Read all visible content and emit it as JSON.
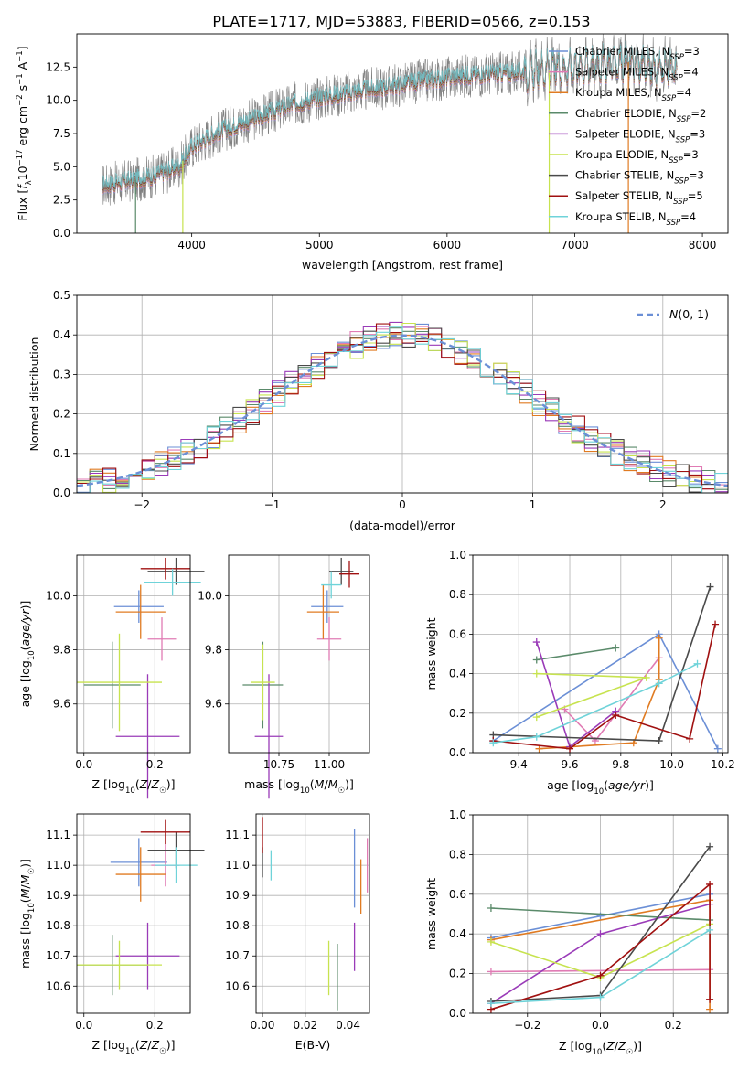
{
  "title": "PLATE=1717, MJD=53883, FIBERID=0566, z=0.153",
  "colors": {
    "Chabrier MILES": "#6b8fd6",
    "Salpeter MILES": "#e07bb4",
    "Kroupa MILES": "#e07b22",
    "Chabrier ELODIE": "#5a8a6a",
    "Salpeter ELODIE": "#9a3bb8",
    "Kroupa ELODIE": "#c7e34f",
    "Chabrier STELIB": "#4a4a4a",
    "Salpeter STELIB": "#a01010",
    "Kroupa STELIB": "#6fd3d9",
    "spectrum": "#808080",
    "normal": "#6b8fd6"
  },
  "chart_data": [
    {
      "type": "line",
      "panel": "spectrum",
      "xlabel": "wavelength [Angstrom, rest frame]",
      "ylabel": "Flux [f_λ 10^-17 erg cm^-2 s^-1 A^-1]",
      "xlim": [
        3100,
        8200
      ],
      "ylim": [
        0,
        15
      ],
      "xticks": [
        "4000",
        "5000",
        "6000",
        "7000",
        "8000"
      ],
      "yticks": [
        "0.0",
        "2.5",
        "5.0",
        "7.5",
        "10.0",
        "12.5"
      ],
      "data_range": [
        3300,
        7800
      ],
      "continuum": [
        [
          3300,
          3.6
        ],
        [
          3500,
          3.9
        ],
        [
          3700,
          4.3
        ],
        [
          3900,
          5.0
        ],
        [
          4000,
          6.5
        ],
        [
          4200,
          7.6
        ],
        [
          4400,
          8.3
        ],
        [
          4600,
          9.0
        ],
        [
          4800,
          9.7
        ],
        [
          5000,
          10.2
        ],
        [
          5200,
          10.5
        ],
        [
          5400,
          10.8
        ],
        [
          5600,
          11.1
        ],
        [
          5800,
          11.4
        ],
        [
          6000,
          11.7
        ],
        [
          6200,
          11.9
        ],
        [
          6400,
          12.0
        ],
        [
          6600,
          12.1
        ],
        [
          6800,
          12.3
        ],
        [
          7000,
          12.5
        ],
        [
          7200,
          12.7
        ],
        [
          7400,
          12.9
        ],
        [
          7600,
          12.5
        ],
        [
          7800,
          12.2
        ]
      ],
      "legend": [
        {
          "label": "Chabrier MILES, N_SSP=3",
          "base": "Chabrier MILES, N",
          "sub": "SSP",
          "tail": "=3"
        },
        {
          "label": "Salpeter MILES, N_SSP=4",
          "base": "Salpeter MILES, N",
          "sub": "SSP",
          "tail": "=4"
        },
        {
          "label": "Kroupa MILES, N_SSP=4",
          "base": "Kroupa MILES, N",
          "sub": "SSP",
          "tail": "=4"
        },
        {
          "label": "Chabrier ELODIE, N_SSP=2",
          "base": "Chabrier ELODIE, N",
          "sub": "SSP",
          "tail": "=2"
        },
        {
          "label": "Salpeter ELODIE, N_SSP=3",
          "base": "Salpeter ELODIE, N",
          "sub": "SSP",
          "tail": "=3"
        },
        {
          "label": "Kroupa ELODIE, N_SSP=3",
          "base": "Kroupa ELODIE, N",
          "sub": "SSP",
          "tail": "=3"
        },
        {
          "label": "Chabrier STELIB, N_SSP=3",
          "base": "Chabrier STELIB, N",
          "sub": "SSP",
          "tail": "=3"
        },
        {
          "label": "Salpeter STELIB, N_SSP=5",
          "base": "Salpeter STELIB, N",
          "sub": "SSP",
          "tail": "=5"
        },
        {
          "label": "Kroupa STELIB, N_SSP=4",
          "base": "Kroupa STELIB, N",
          "sub": "SSP",
          "tail": "=4"
        }
      ]
    },
    {
      "type": "histogram",
      "panel": "residuals",
      "xlabel": "(data-model)/error",
      "ylabel": "Normed distribution",
      "xlim": [
        -2.5,
        2.5
      ],
      "ylim": [
        0,
        0.5
      ],
      "xticks": [
        "−2",
        "−1",
        "0",
        "1",
        "2"
      ],
      "yticks": [
        "0.0",
        "0.1",
        "0.2",
        "0.3",
        "0.4",
        "0.5"
      ],
      "legend": "N(0,1)",
      "bin_edges_start": -2.5,
      "bin_width": 0.1,
      "grid": true
    },
    {
      "type": "errorbar",
      "panel": "age-vs-Z",
      "xlabel": "Z [log10(Z/Z☉)]",
      "ylabel": "age [log10(age/yr)]",
      "xlim": [
        -0.02,
        0.3
      ],
      "ylim": [
        9.42,
        10.15
      ],
      "xticks": [
        "0.0",
        "0.2"
      ],
      "yticks": [
        "9.6",
        "9.8",
        "10.0"
      ],
      "points": [
        {
          "model": "Chabrier MILES",
          "x": 0.155,
          "xerr": 0.07,
          "y": 9.96,
          "yerr": 0.06
        },
        {
          "model": "Salpeter MILES",
          "x": 0.22,
          "xerr": 0.04,
          "y": 9.84,
          "yerr": 0.08
        },
        {
          "model": "Kroupa MILES",
          "x": 0.16,
          "xerr": 0.07,
          "y": 9.94,
          "yerr": 0.1
        },
        {
          "model": "Chabrier ELODIE",
          "x": 0.08,
          "xerr": 0.08,
          "y": 9.67,
          "yerr": 0.16
        },
        {
          "model": "Salpeter ELODIE",
          "x": 0.18,
          "xerr": 0.09,
          "y": 9.48,
          "yerr": 0.23
        },
        {
          "model": "Kroupa ELODIE",
          "x": 0.1,
          "xerr": 0.12,
          "y": 9.68,
          "yerr": 0.18
        },
        {
          "model": "Chabrier STELIB",
          "x": 0.26,
          "xerr": 0.08,
          "y": 10.09,
          "yerr": 0.05
        },
        {
          "model": "Salpeter STELIB",
          "x": 0.23,
          "xerr": 0.07,
          "y": 10.1,
          "yerr": 0.04
        },
        {
          "model": "Kroupa STELIB",
          "x": 0.25,
          "xerr": 0.08,
          "y": 10.05,
          "yerr": 0.05
        }
      ]
    },
    {
      "type": "errorbar",
      "panel": "age-vs-mass",
      "xlabel": "mass [log10(M/M☉)]",
      "ylabel": "",
      "xlim": [
        10.5,
        11.2
      ],
      "ylim": [
        9.42,
        10.15
      ],
      "xticks": [
        "10.75",
        "11.00"
      ],
      "yticks": [
        "9.6",
        "9.8",
        "10.0"
      ],
      "points": [
        {
          "model": "Chabrier MILES",
          "x": 10.99,
          "xerr": 0.08,
          "y": 9.96,
          "yerr": 0.06
        },
        {
          "model": "Salpeter MILES",
          "x": 11.0,
          "xerr": 0.06,
          "y": 9.84,
          "yerr": 0.08
        },
        {
          "model": "Kroupa MILES",
          "x": 10.97,
          "xerr": 0.08,
          "y": 9.94,
          "yerr": 0.1
        },
        {
          "model": "Chabrier ELODIE",
          "x": 10.67,
          "xerr": 0.1,
          "y": 9.67,
          "yerr": 0.16
        },
        {
          "model": "Salpeter ELODIE",
          "x": 10.7,
          "xerr": 0.07,
          "y": 9.48,
          "yerr": 0.23
        },
        {
          "model": "Kroupa ELODIE",
          "x": 10.67,
          "xerr": 0.06,
          "y": 9.68,
          "yerr": 0.14
        },
        {
          "model": "Chabrier STELIB",
          "x": 11.06,
          "xerr": 0.06,
          "y": 10.09,
          "yerr": 0.05
        },
        {
          "model": "Salpeter STELIB",
          "x": 11.1,
          "xerr": 0.05,
          "y": 10.08,
          "yerr": 0.05
        },
        {
          "model": "Kroupa STELIB",
          "x": 11.01,
          "xerr": 0.05,
          "y": 10.04,
          "yerr": 0.05
        }
      ]
    },
    {
      "type": "line",
      "panel": "weight-vs-age",
      "xlabel": "age [log10(age/yr)]",
      "ylabel": "mass weight",
      "xlim": [
        9.22,
        10.22
      ],
      "ylim": [
        0,
        1
      ],
      "xticks": [
        "9.4",
        "9.6",
        "9.8",
        "10.0",
        "10.2"
      ],
      "yticks": [
        "0.0",
        "0.2",
        "0.4",
        "0.6",
        "0.8",
        "1.0"
      ],
      "grid": true,
      "series": [
        {
          "model": "Chabrier MILES",
          "points": [
            [
              9.3,
              0.06
            ],
            [
              9.95,
              0.6
            ],
            [
              10.18,
              0.02
            ]
          ]
        },
        {
          "model": "Salpeter MILES",
          "points": [
            [
              9.58,
              0.22
            ],
            [
              9.7,
              0.06
            ],
            [
              9.95,
              0.48
            ]
          ]
        },
        {
          "model": "Kroupa MILES",
          "points": [
            [
              9.48,
              0.02
            ],
            [
              9.85,
              0.05
            ],
            [
              9.95,
              0.37
            ],
            [
              9.95,
              0.58
            ]
          ]
        },
        {
          "model": "Chabrier ELODIE",
          "points": [
            [
              9.47,
              0.47
            ],
            [
              9.78,
              0.53
            ]
          ]
        },
        {
          "model": "Salpeter ELODIE",
          "points": [
            [
              9.47,
              0.56
            ],
            [
              9.6,
              0.03
            ],
            [
              9.78,
              0.21
            ]
          ]
        },
        {
          "model": "Kroupa ELODIE",
          "points": [
            [
              9.47,
              0.18
            ],
            [
              9.9,
              0.38
            ],
            [
              9.47,
              0.4
            ]
          ]
        },
        {
          "model": "Chabrier STELIB",
          "points": [
            [
              9.3,
              0.09
            ],
            [
              9.95,
              0.06
            ],
            [
              10.15,
              0.84
            ]
          ]
        },
        {
          "model": "Salpeter STELIB",
          "points": [
            [
              9.3,
              0.06
            ],
            [
              9.6,
              0.02
            ],
            [
              9.78,
              0.19
            ],
            [
              10.07,
              0.07
            ],
            [
              10.17,
              0.65
            ]
          ]
        },
        {
          "model": "Kroupa STELIB",
          "points": [
            [
              9.3,
              0.05
            ],
            [
              9.47,
              0.08
            ],
            [
              9.95,
              0.35
            ],
            [
              10.1,
              0.45
            ]
          ]
        }
      ]
    },
    {
      "type": "errorbar",
      "panel": "mass-vs-Z",
      "xlabel": "Z [log10(Z/Z☉)]",
      "ylabel": "mass [log10(M/M☉)]",
      "xlim": [
        -0.02,
        0.3
      ],
      "ylim": [
        10.51,
        11.17
      ],
      "xticks": [
        "0.0",
        "0.2"
      ],
      "yticks": [
        "10.6",
        "10.7",
        "10.8",
        "10.9",
        "11.0",
        "11.1"
      ],
      "points": [
        {
          "model": "Chabrier MILES",
          "x": 0.155,
          "xerr": 0.08,
          "y": 11.01,
          "yerr": 0.08
        },
        {
          "model": "Salpeter MILES",
          "x": 0.23,
          "xerr": 0.04,
          "y": 11.0,
          "yerr": 0.07
        },
        {
          "model": "Kroupa MILES",
          "x": 0.16,
          "xerr": 0.07,
          "y": 10.97,
          "yerr": 0.09
        },
        {
          "model": "Chabrier ELODIE",
          "x": 0.08,
          "xerr": 0.1,
          "y": 10.67,
          "yerr": 0.1
        },
        {
          "model": "Salpeter ELODIE",
          "x": 0.18,
          "xerr": 0.09,
          "y": 10.7,
          "yerr": 0.11
        },
        {
          "model": "Kroupa ELODIE",
          "x": 0.1,
          "xerr": 0.12,
          "y": 10.67,
          "yerr": 0.08
        },
        {
          "model": "Chabrier STELIB",
          "x": 0.26,
          "xerr": 0.08,
          "y": 11.05,
          "yerr": 0.06
        },
        {
          "model": "Salpeter STELIB",
          "x": 0.23,
          "xerr": 0.07,
          "y": 11.11,
          "yerr": 0.04
        },
        {
          "model": "Kroupa STELIB",
          "x": 0.26,
          "xerr": 0.06,
          "y": 11.0,
          "yerr": 0.06
        }
      ]
    },
    {
      "type": "errorbar",
      "panel": "mass-vs-EBV",
      "xlabel": "E(B-V)",
      "ylabel": "",
      "xlim": [
        -0.003,
        0.05
      ],
      "ylim": [
        10.51,
        11.17
      ],
      "xticks": [
        "0.00",
        "0.02",
        "0.04"
      ],
      "yticks": [
        "10.6",
        "10.7",
        "10.8",
        "10.9",
        "11.0",
        "11.1"
      ],
      "points": [
        {
          "model": "Chabrier MILES",
          "x": 0.043,
          "y": 10.99,
          "yerr": 0.13
        },
        {
          "model": "Salpeter MILES",
          "x": 0.049,
          "y": 11.0,
          "yerr": 0.09
        },
        {
          "model": "Kroupa MILES",
          "x": 0.046,
          "y": 10.93,
          "yerr": 0.09
        },
        {
          "model": "Chabrier ELODIE",
          "x": 0.035,
          "y": 10.63,
          "yerr": 0.11
        },
        {
          "model": "Salpeter ELODIE",
          "x": 0.043,
          "y": 10.73,
          "yerr": 0.08
        },
        {
          "model": "Kroupa ELODIE",
          "x": 0.031,
          "y": 10.66,
          "yerr": 0.09
        },
        {
          "model": "Chabrier STELIB",
          "x": 0.0,
          "y": 11.01,
          "yerr": 0.05
        },
        {
          "model": "Salpeter STELIB",
          "x": 0.0,
          "y": 11.1,
          "yerr": 0.06
        },
        {
          "model": "Kroupa STELIB",
          "x": 0.004,
          "y": 11.0,
          "yerr": 0.05
        }
      ]
    },
    {
      "type": "line",
      "panel": "weight-vs-Z",
      "xlabel": "Z [log10(Z/Z☉)]",
      "ylabel": "mass weight",
      "xlim": [
        -0.35,
        0.35
      ],
      "ylim": [
        0,
        1
      ],
      "xticks": [
        "−0.2",
        "0.0",
        "0.2"
      ],
      "yticks": [
        "0.0",
        "0.2",
        "0.4",
        "0.6",
        "0.8",
        "1.0"
      ],
      "grid": true,
      "series": [
        {
          "model": "Chabrier MILES",
          "points": [
            [
              -0.3,
              0.38
            ],
            [
              0.0,
              0.49
            ],
            [
              0.3,
              0.6
            ]
          ]
        },
        {
          "model": "Salpeter MILES",
          "points": [
            [
              -0.3,
              0.21
            ],
            [
              0.3,
              0.22
            ]
          ]
        },
        {
          "model": "Kroupa MILES",
          "points": [
            [
              -0.3,
              0.37
            ],
            [
              0.3,
              0.57
            ],
            [
              0.3,
              0.02
            ]
          ]
        },
        {
          "model": "Chabrier ELODIE",
          "points": [
            [
              -0.3,
              0.53
            ],
            [
              0.3,
              0.47
            ]
          ]
        },
        {
          "model": "Salpeter ELODIE",
          "points": [
            [
              -0.3,
              0.05
            ],
            [
              0.0,
              0.4
            ],
            [
              0.3,
              0.55
            ]
          ]
        },
        {
          "model": "Kroupa ELODIE",
          "points": [
            [
              -0.3,
              0.36
            ],
            [
              0.0,
              0.18
            ],
            [
              0.3,
              0.45
            ]
          ]
        },
        {
          "model": "Chabrier STELIB",
          "points": [
            [
              -0.3,
              0.06
            ],
            [
              0.0,
              0.09
            ],
            [
              0.3,
              0.84
            ]
          ]
        },
        {
          "model": "Salpeter STELIB",
          "points": [
            [
              -0.3,
              0.02
            ],
            [
              0.0,
              0.19
            ],
            [
              0.3,
              0.65
            ],
            [
              0.3,
              0.07
            ]
          ]
        },
        {
          "model": "Kroupa STELIB",
          "points": [
            [
              -0.3,
              0.05
            ],
            [
              0.0,
              0.08
            ],
            [
              0.3,
              0.42
            ]
          ]
        }
      ]
    }
  ]
}
